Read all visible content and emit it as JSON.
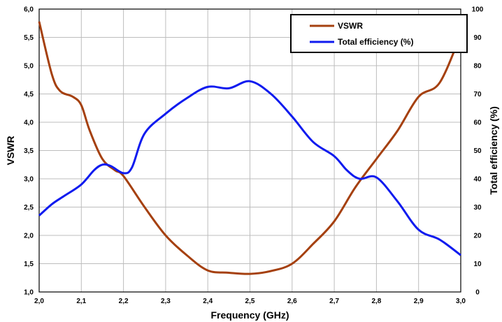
{
  "chart_data": {
    "type": "line",
    "title": "",
    "xlabel": "Frequency (GHz)",
    "ylabel_left": "VSWR",
    "ylabel_right": "Total efficiency (%)",
    "xlim": [
      2.0,
      3.0
    ],
    "ylim_left": [
      1.0,
      6.0
    ],
    "ylim_right": [
      0,
      100
    ],
    "x_ticks": [
      "2,0",
      "2,1",
      "2,2",
      "2,3",
      "2,4",
      "2,5",
      "2,6",
      "2,7",
      "2,8",
      "2,9",
      "3,0"
    ],
    "y_left_ticks": [
      "1,0",
      "1,5",
      "2,0",
      "2,5",
      "3,0",
      "3,5",
      "4,0",
      "4,5",
      "5,0",
      "5,5",
      "6,0"
    ],
    "y_right_ticks": [
      "0",
      "10",
      "20",
      "30",
      "40",
      "50",
      "60",
      "70",
      "80",
      "90",
      "100"
    ],
    "grid": true,
    "legend_position": "top-right",
    "series": [
      {
        "name": "VSWR",
        "axis": "left",
        "color": "#a5400f",
        "x": [
          2.0,
          2.03,
          2.05,
          2.08,
          2.1,
          2.12,
          2.15,
          2.18,
          2.2,
          2.25,
          2.3,
          2.35,
          2.4,
          2.45,
          2.5,
          2.55,
          2.6,
          2.65,
          2.7,
          2.75,
          2.8,
          2.85,
          2.9,
          2.95,
          3.0
        ],
        "values": [
          5.78,
          4.85,
          4.55,
          4.45,
          4.3,
          3.85,
          3.35,
          3.15,
          3.05,
          2.5,
          2.0,
          1.65,
          1.38,
          1.34,
          1.32,
          1.37,
          1.5,
          1.85,
          2.25,
          2.85,
          3.35,
          3.85,
          4.45,
          4.7,
          5.55
        ]
      },
      {
        "name": "Total efficiency (%)",
        "axis": "right",
        "color": "#0f1bef",
        "x": [
          2.0,
          2.03,
          2.06,
          2.1,
          2.13,
          2.15,
          2.17,
          2.2,
          2.22,
          2.25,
          2.3,
          2.35,
          2.4,
          2.45,
          2.5,
          2.55,
          2.6,
          2.65,
          2.7,
          2.73,
          2.76,
          2.8,
          2.85,
          2.9,
          2.95,
          3.0
        ],
        "values": [
          27,
          31,
          34,
          38,
          43,
          45,
          44.5,
          42,
          44,
          56,
          63,
          68.5,
          72.5,
          72,
          74.5,
          70,
          62,
          53,
          48,
          43,
          40,
          40.5,
          32,
          22,
          18.5,
          13
        ]
      }
    ]
  }
}
